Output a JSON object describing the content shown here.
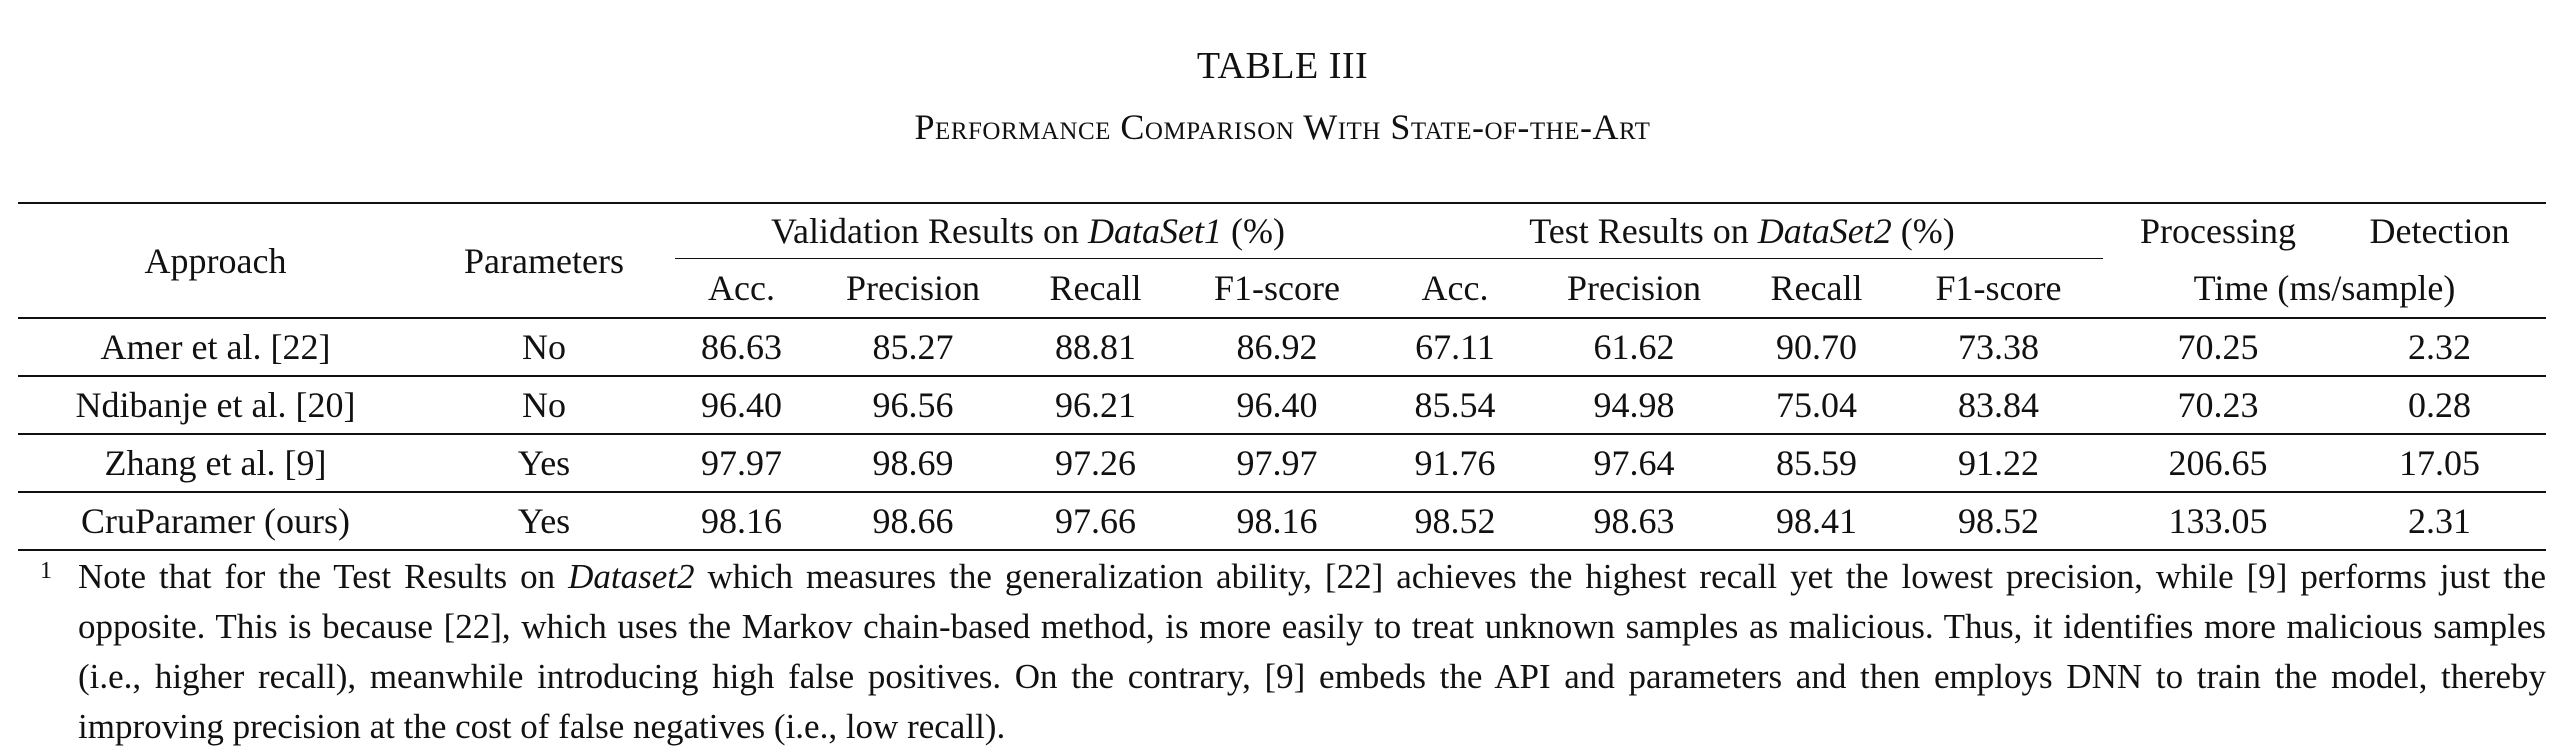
{
  "table": {
    "label": "TABLE III",
    "caption": "Performance Comparison With State-of-the-Art",
    "headers": {
      "approach": "Approach",
      "parameters": "Parameters",
      "validation_group_prefix": "Validation Results on ",
      "validation_group_dataset": "DataSet1",
      "validation_group_suffix": " (%)",
      "test_group_prefix": "Test Results on ",
      "test_group_dataset": "DataSet2",
      "test_group_suffix": " (%)",
      "processing": "Processing",
      "detection": "Detection",
      "time_unit": "Time (ms/sample)",
      "acc": "Acc.",
      "precision": "Precision",
      "recall": "Recall",
      "f1": "F1-score"
    },
    "rows": [
      {
        "approach": "Amer et al. [22]",
        "parameters": "No",
        "val_acc": "86.63",
        "val_precision": "85.27",
        "val_recall": "88.81",
        "val_f1": "86.92",
        "test_acc": "67.11",
        "test_precision": "61.62",
        "test_recall": "90.70",
        "test_f1": "73.38",
        "processing_time": "70.25",
        "detection_time": "2.32",
        "bold": false
      },
      {
        "approach": "Ndibanje et al. [20]",
        "parameters": "No",
        "val_acc": "96.40",
        "val_precision": "96.56",
        "val_recall": "96.21",
        "val_f1": "96.40",
        "test_acc": "85.54",
        "test_precision": "94.98",
        "test_recall": "75.04",
        "test_f1": "83.84",
        "processing_time": "70.23",
        "detection_time": "0.28",
        "bold": false
      },
      {
        "approach": "Zhang et al. [9]",
        "parameters": "Yes",
        "val_acc": "97.97",
        "val_precision": "98.69",
        "val_recall": "97.26",
        "val_f1": "97.97",
        "test_acc": "91.76",
        "test_precision": "97.64",
        "test_recall": "85.59",
        "test_f1": "91.22",
        "processing_time": "206.65",
        "detection_time": "17.05",
        "bold": false
      },
      {
        "approach": "CruParamer (ours)",
        "parameters": "Yes",
        "val_acc": "98.16",
        "val_precision": "98.66",
        "val_recall": "97.66",
        "val_f1": "98.16",
        "test_acc": "98.52",
        "test_precision": "98.63",
        "test_recall": "98.41",
        "test_f1": "98.52",
        "processing_time": "133.05",
        "detection_time": "2.31",
        "bold": true
      }
    ]
  },
  "footnote": {
    "marker": "1",
    "text_before": "Note that for the Test Results on ",
    "dataset": "Dataset2",
    "text_after": " which measures the generalization ability, [22] achieves the highest recall yet the lowest precision, while [9] performs just the opposite. This is because [22], which uses the Markov chain-based method, is more easily to treat unknown samples as malicious. Thus, it identifies more malicious samples (i.e., higher recall), meanwhile introducing high false positives. On the contrary, [9] embeds the API and parameters and then employs DNN to train the model, thereby improving precision at the cost of false negatives (i.e., low recall)."
  }
}
